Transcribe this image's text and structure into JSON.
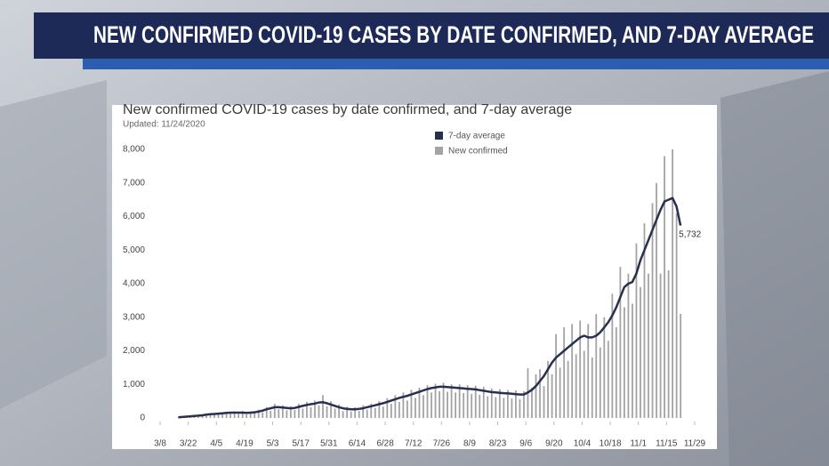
{
  "banner": {
    "title": "NEW CONFIRMED COVID-19 CASES BY DATE CONFIRMED, AND 7-DAY AVERAGE"
  },
  "chart_data": {
    "type": "bar",
    "title": "New confirmed COVID-19 cases by date confirmed, and 7-day average",
    "subtitle": "Updated: 11/24/2020",
    "grid": false,
    "legend": "top",
    "xlim": [
      -4,
      270
    ],
    "xticks": [
      {
        "value": 0,
        "label": "3/8"
      },
      {
        "value": 14,
        "label": "3/22"
      },
      {
        "value": 28,
        "label": "4/5"
      },
      {
        "value": 42,
        "label": "4/19"
      },
      {
        "value": 56,
        "label": "5/3"
      },
      {
        "value": 70,
        "label": "5/17"
      },
      {
        "value": 84,
        "label": "5/31"
      },
      {
        "value": 98,
        "label": "6/14"
      },
      {
        "value": 112,
        "label": "6/28"
      },
      {
        "value": 126,
        "label": "7/12"
      },
      {
        "value": 140,
        "label": "7/26"
      },
      {
        "value": 154,
        "label": "8/9"
      },
      {
        "value": 168,
        "label": "8/23"
      },
      {
        "value": 182,
        "label": "9/6"
      },
      {
        "value": 196,
        "label": "9/20"
      },
      {
        "value": 210,
        "label": "10/4"
      },
      {
        "value": 224,
        "label": "10/18"
      },
      {
        "value": 238,
        "label": "11/1"
      },
      {
        "value": 252,
        "label": "11/15"
      },
      {
        "value": 266,
        "label": "11/29"
      }
    ],
    "ylim": [
      0,
      8000
    ],
    "yticks": [
      0,
      {
        "value": 1000,
        "label": "1,000"
      },
      {
        "value": 2000,
        "label": "2,000"
      },
      {
        "value": 3000,
        "label": "3,000"
      },
      {
        "value": 4000,
        "label": "4,000"
      },
      {
        "value": 5000,
        "label": "5,000"
      },
      {
        "value": 6000,
        "label": "6,000"
      },
      {
        "value": 7000,
        "label": "7,000"
      },
      {
        "value": 8000,
        "label": "8,000"
      }
    ],
    "x": [
      9,
      11,
      13,
      15,
      17,
      19,
      21,
      23,
      25,
      27,
      29,
      31,
      33,
      35,
      37,
      39,
      41,
      43,
      45,
      47,
      49,
      51,
      53,
      55,
      57,
      59,
      61,
      63,
      65,
      67,
      69,
      71,
      73,
      75,
      77,
      79,
      81,
      83,
      85,
      87,
      89,
      91,
      93,
      95,
      97,
      99,
      101,
      103,
      105,
      107,
      109,
      111,
      113,
      115,
      117,
      119,
      121,
      123,
      125,
      127,
      129,
      131,
      133,
      135,
      137,
      139,
      141,
      143,
      145,
      147,
      149,
      151,
      153,
      155,
      157,
      159,
      161,
      163,
      165,
      167,
      169,
      171,
      173,
      175,
      177,
      179,
      181,
      183,
      185,
      187,
      189,
      191,
      193,
      195,
      197,
      199,
      201,
      203,
      205,
      207,
      209,
      211,
      213,
      215,
      217,
      219,
      221,
      223,
      225,
      227,
      229,
      231,
      233,
      235,
      237,
      239,
      241,
      243,
      245,
      247,
      249,
      251,
      253,
      255,
      257,
      259
    ],
    "series": [
      {
        "name": "7-day average",
        "type": "line",
        "color": "#27304f",
        "values": [
          20,
          30,
          40,
          50,
          60,
          70,
          80,
          100,
          110,
          120,
          130,
          140,
          150,
          160,
          160,
          160,
          160,
          150,
          160,
          170,
          190,
          220,
          260,
          290,
          320,
          320,
          310,
          300,
          290,
          300,
          330,
          360,
          390,
          410,
          430,
          460,
          470,
          440,
          400,
          360,
          320,
          290,
          270,
          260,
          260,
          270,
          290,
          320,
          350,
          380,
          410,
          440,
          480,
          520,
          560,
          600,
          630,
          660,
          700,
          740,
          780,
          820,
          860,
          890,
          910,
          930,
          930,
          920,
          910,
          900,
          890,
          880,
          870,
          860,
          850,
          830,
          810,
          790,
          770,
          760,
          750,
          740,
          730,
          720,
          710,
          700,
          700,
          760,
          840,
          950,
          1100,
          1250,
          1450,
          1650,
          1800,
          1900,
          2000,
          2100,
          2200,
          2300,
          2400,
          2450,
          2400,
          2400,
          2450,
          2550,
          2700,
          2850,
          3050,
          3300,
          3600,
          3900,
          4000,
          4050,
          4300,
          4700,
          5000,
          5300,
          5600,
          5900,
          6200,
          6450,
          6500,
          6550,
          6300,
          5732
        ],
        "value_labels": [
          null,
          null,
          null,
          null,
          null,
          null,
          null,
          null,
          null,
          null,
          null,
          null,
          null,
          null,
          null,
          null,
          null,
          null,
          null,
          null,
          null,
          null,
          null,
          null,
          null,
          null,
          null,
          null,
          null,
          null,
          null,
          null,
          null,
          null,
          null,
          null,
          null,
          null,
          null,
          null,
          null,
          null,
          null,
          null,
          null,
          null,
          null,
          null,
          null,
          null,
          null,
          null,
          null,
          null,
          null,
          null,
          null,
          null,
          null,
          null,
          null,
          null,
          null,
          null,
          null,
          null,
          null,
          null,
          null,
          null,
          null,
          null,
          null,
          null,
          null,
          null,
          null,
          null,
          null,
          null,
          null,
          null,
          null,
          null,
          null,
          null,
          null,
          null,
          null,
          null,
          null,
          null,
          null,
          null,
          null,
          null,
          null,
          null,
          null,
          null,
          null,
          null,
          null,
          null,
          null,
          null,
          null,
          null,
          null,
          null,
          null,
          null,
          null,
          null,
          null,
          null,
          null,
          null,
          null,
          null,
          null,
          null,
          null,
          null,
          null,
          "5,732"
        ]
      },
      {
        "name": "New confirmed",
        "type": "bar",
        "color": "#a3a3a3",
        "values": [
          10,
          40,
          30,
          70,
          50,
          90,
          60,
          130,
          90,
          150,
          160,
          110,
          190,
          130,
          200,
          120,
          210,
          110,
          190,
          150,
          250,
          170,
          330,
          210,
          420,
          260,
          380,
          230,
          350,
          240,
          420,
          280,
          480,
          320,
          520,
          380,
          680,
          350,
          500,
          280,
          400,
          200,
          330,
          190,
          320,
          210,
          380,
          250,
          430,
          300,
          500,
          340,
          590,
          420,
          680,
          480,
          760,
          520,
          840,
          600,
          900,
          680,
          980,
          760,
          1020,
          800,
          1050,
          780,
          1000,
          760,
          1000,
          740,
          980,
          720,
          960,
          690,
          930,
          650,
          880,
          620,
          860,
          600,
          830,
          580,
          820,
          560,
          800,
          1480,
          900,
          1300,
          1450,
          950,
          1700,
          1300,
          2500,
          1500,
          2700,
          1700,
          2800,
          1900,
          2900,
          2000,
          2800,
          1800,
          3100,
          2100,
          3000,
          2300,
          3700,
          2700,
          4500,
          3300,
          4300,
          3400,
          5200,
          3900,
          5800,
          4300,
          6400,
          7000,
          4300,
          7800,
          4400,
          8000,
          6100,
          3100
        ]
      }
    ]
  }
}
